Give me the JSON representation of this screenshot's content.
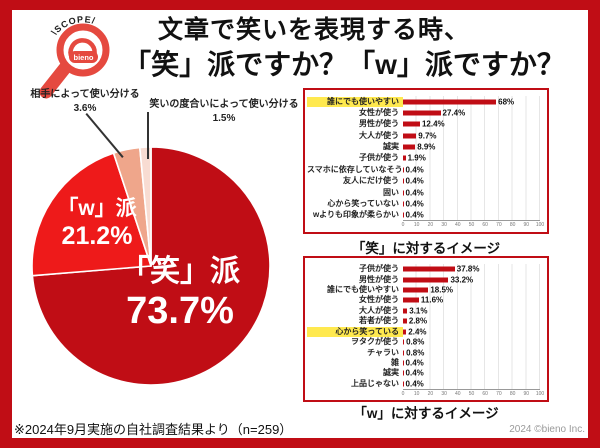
{
  "frame": {
    "color": "#c00d15"
  },
  "logo": {
    "scope": "\\SCOPE/",
    "brand": "bieno",
    "color": "#e5493f"
  },
  "title": {
    "line1": "文章で笑いを表現する時、",
    "line2": "「笑」派ですか？「w」派ですか？"
  },
  "footer": {
    "note": "※2024年9月実施の自社調査結果より（n=259）",
    "copyright": "2024 ©bieno Inc."
  },
  "chart_data": [
    {
      "type": "pie",
      "unit": "%",
      "direction": "clockwise",
      "start_angle_deg": 0,
      "slices": [
        {
          "label": "「笑」派",
          "value": 73.7,
          "display": "73.7%",
          "color": "#c00d15"
        },
        {
          "label": "「w」派",
          "value": 21.2,
          "display": "21.2%",
          "color": "#ee1a1a"
        },
        {
          "label": "相手によって使い分ける",
          "value": 3.6,
          "display": "3.6%",
          "color": "#efa68b"
        },
        {
          "label": "笑いの度合いによって使い分ける",
          "value": 1.5,
          "display": "1.5%",
          "color": "#f8dcd2"
        }
      ]
    },
    {
      "type": "bar",
      "orientation": "horizontal",
      "title": "「笑」に対するイメージ",
      "xlim": [
        0,
        100
      ],
      "x_ticks": [
        0,
        10,
        20,
        30,
        40,
        50,
        60,
        70,
        80,
        90,
        100
      ],
      "grid": true,
      "bar_color": "#c00d15",
      "highlight_index": 0,
      "highlight_color": "#ffe94f",
      "categories": [
        "誰にでも使いやすい",
        "女性が使う",
        "男性が使う",
        "大人が使う",
        "誠実",
        "子供が使う",
        "スマホに依存していなそう",
        "友人にだけ使う",
        "固い",
        "心から笑っていない",
        "wよりも印象が柔らかい"
      ],
      "values": [
        68,
        27.4,
        12.4,
        9.7,
        8.9,
        1.9,
        0.4,
        0.4,
        0.4,
        0.4,
        0.4
      ],
      "value_labels": [
        "68%",
        "27.4%",
        "12.4%",
        "9.7%",
        "8.9%",
        "1.9%",
        "0.4%",
        "0.4%",
        "0.4%",
        "0.4%",
        "0.4%"
      ]
    },
    {
      "type": "bar",
      "orientation": "horizontal",
      "title": "「w」に対するイメージ",
      "xlim": [
        0,
        100
      ],
      "x_ticks": [
        0,
        10,
        20,
        30,
        40,
        50,
        60,
        70,
        80,
        90,
        100
      ],
      "grid": true,
      "bar_color": "#c00d15",
      "highlight_index": 6,
      "highlight_color": "#ffe94f",
      "categories": [
        "子供が使う",
        "男性が使う",
        "誰にでも使いやすい",
        "女性が使う",
        "大人が使う",
        "若者が使う",
        "心から笑っている",
        "ヲタクが使う",
        "チャラい",
        "雑",
        "誠実",
        "上品じゃない"
      ],
      "values": [
        37.8,
        33.2,
        18.5,
        11.6,
        3.1,
        2.8,
        2.4,
        0.8,
        0.8,
        0.4,
        0.4,
        0.4
      ],
      "value_labels": [
        "37.8%",
        "33.2%",
        "18.5%",
        "11.6%",
        "3.1%",
        "2.8%",
        "2.4%",
        "0.8%",
        "0.8%",
        "0.4%",
        "0.4%",
        "0.4%"
      ]
    }
  ]
}
